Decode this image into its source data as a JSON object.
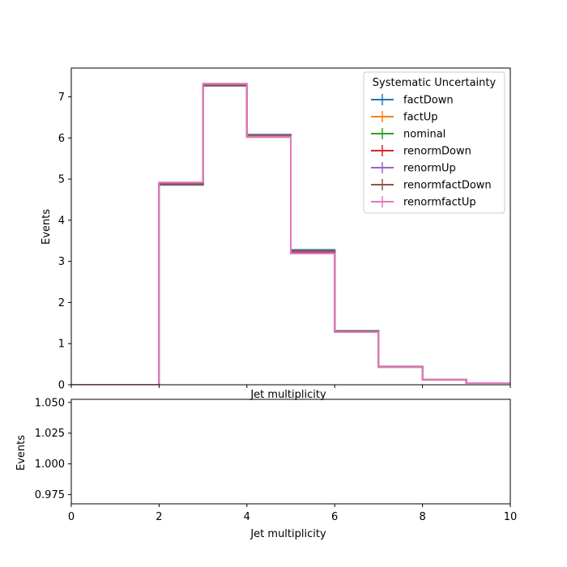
{
  "chart_data": [
    {
      "type": "step",
      "title": "",
      "xlabel": "Jet multiplicity",
      "ylabel": "Events",
      "xlim": [
        0,
        10
      ],
      "ylim": [
        0,
        7.7
      ],
      "xticks": [
        0,
        2,
        4,
        6,
        8,
        10
      ],
      "yticks": [
        0,
        1,
        2,
        3,
        4,
        5,
        6,
        7
      ],
      "bin_edges": [
        0,
        1,
        2,
        3,
        4,
        5,
        6,
        7,
        8,
        9,
        10
      ],
      "legend": {
        "title": "Systematic Uncertainty",
        "placement": "top-right"
      },
      "series": [
        {
          "name": "factDown",
          "color": "#1f77b4",
          "values": [
            0,
            0,
            4.86,
            7.28,
            6.08,
            3.28,
            1.31,
            0.44,
            0.12,
            0.04
          ]
        },
        {
          "name": "factUp",
          "color": "#ff7f0e",
          "values": [
            0,
            0,
            4.9,
            7.3,
            6.02,
            3.19,
            1.28,
            0.43,
            0.12,
            0.04
          ]
        },
        {
          "name": "nominal",
          "color": "#2ca02c",
          "values": [
            0,
            0,
            4.88,
            7.29,
            6.05,
            3.23,
            1.29,
            0.43,
            0.12,
            0.04
          ]
        },
        {
          "name": "renormDown",
          "color": "#d62728",
          "values": [
            0,
            0,
            4.89,
            7.28,
            6.03,
            3.21,
            1.28,
            0.43,
            0.12,
            0.04
          ]
        },
        {
          "name": "renormUp",
          "color": "#9467bd",
          "values": [
            0,
            0,
            4.88,
            7.3,
            6.06,
            3.24,
            1.3,
            0.44,
            0.12,
            0.04
          ]
        },
        {
          "name": "renormfactDown",
          "color": "#8c564b",
          "values": [
            0,
            0,
            4.87,
            7.27,
            6.06,
            3.26,
            1.3,
            0.44,
            0.12,
            0.04
          ]
        },
        {
          "name": "renormfactUp",
          "color": "#e377c2",
          "values": [
            0,
            0,
            4.92,
            7.32,
            6.03,
            3.19,
            1.28,
            0.43,
            0.12,
            0.04
          ]
        }
      ]
    },
    {
      "type": "line",
      "title": "",
      "xlabel": "Jet multiplicity",
      "ylabel": "Events",
      "xlim": [
        0,
        10
      ],
      "ylim": [
        0.9675,
        1.0525
      ],
      "xticks": [
        0,
        2,
        4,
        6,
        8,
        10
      ],
      "yticks": [
        0.975,
        1.0,
        1.025,
        1.05
      ],
      "ytick_labels": [
        "0.975",
        "1.000",
        "1.025",
        "1.050"
      ],
      "series": []
    }
  ]
}
